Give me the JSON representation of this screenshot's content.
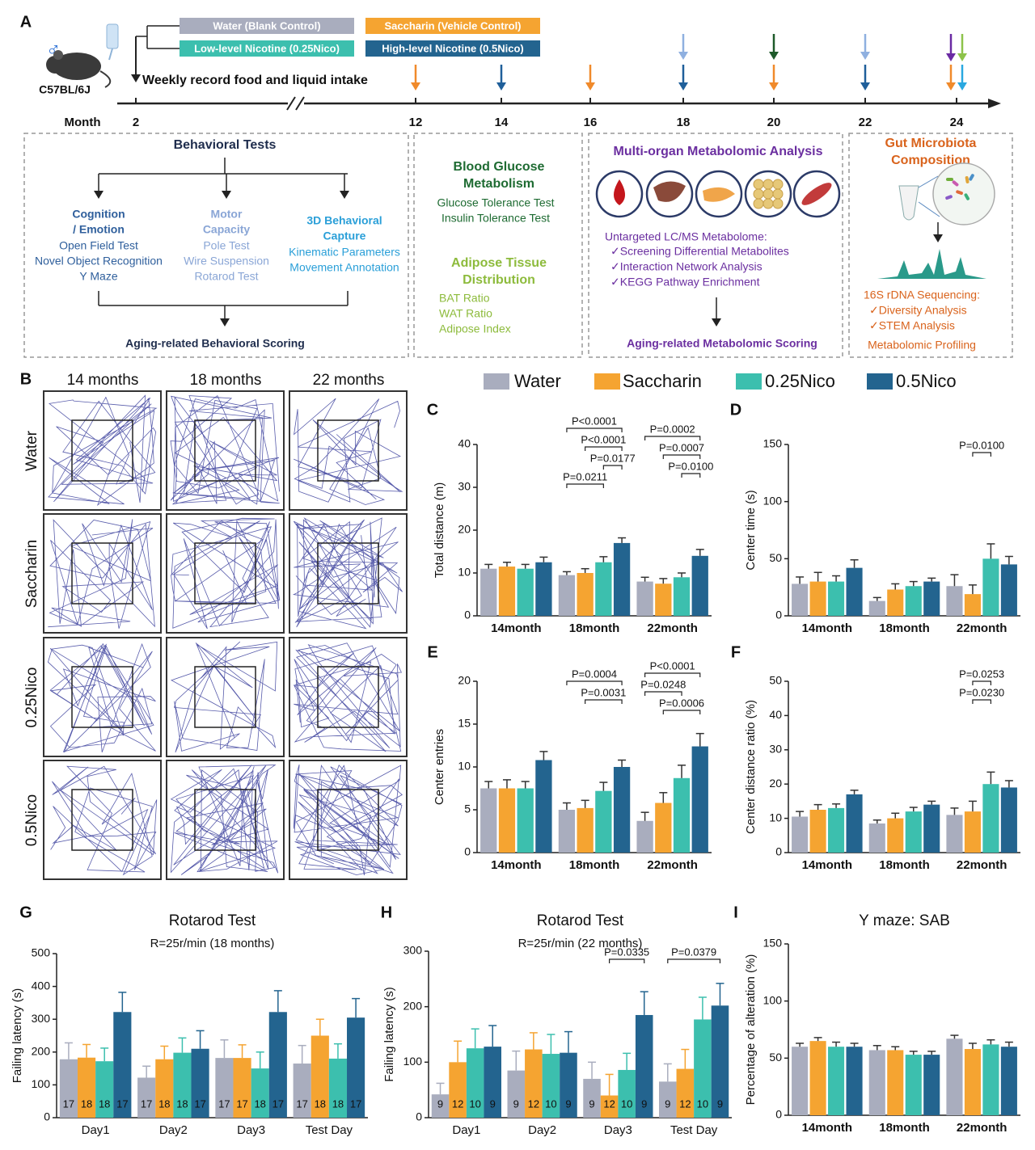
{
  "panel_a": {
    "label": "A",
    "sex_symbol": "♂",
    "strain": "C57BL/6J",
    "groups": [
      {
        "text": "Water (Blank Control)",
        "color": "#a9adbe"
      },
      {
        "text": "Low-level Nicotine (0.25Nico)",
        "color": "#3cbfae"
      },
      {
        "text": "Saccharin (Vehicle Control)",
        "color": "#f5a431"
      },
      {
        "text": "High-level Nicotine (0.5Nico)",
        "color": "#23648f"
      }
    ],
    "intake": "Weekly record food and liquid intake",
    "axis_label": "Month",
    "months": [
      2,
      12,
      14,
      16,
      18,
      20,
      22,
      24
    ],
    "behavioral": {
      "title": "Behavioral Tests",
      "branches": [
        {
          "title": [
            "Cognition",
            "/ Emotion"
          ],
          "color": "#2f5f9c",
          "items": [
            "Open Field Test",
            "Novel Object Recognition",
            "Y Maze"
          ]
        },
        {
          "title": [
            "Motor",
            "Capacity"
          ],
          "color": "#8aa6d6",
          "items": [
            "Pole Test",
            "Wire Suspension",
            "Rotarod Test"
          ]
        },
        {
          "title": [
            "3D Behavioral",
            "Capture"
          ],
          "color": "#2a9fd8",
          "items": [
            "Kinematic Parameters",
            "Movement Annotation"
          ]
        }
      ],
      "footer": "Aging-related Behavioral Scoring"
    },
    "physiology": [
      {
        "title": [
          "Blood Glucose",
          "Metabolism"
        ],
        "color": "#1e6b32",
        "items": [
          "Glucose Tolerance Test",
          "Insulin Tolerance Test"
        ]
      },
      {
        "title": [
          "Adipose Tissue",
          "Distribution"
        ],
        "color": "#8dbb3c",
        "items": [
          "BAT Ratio",
          "WAT Ratio",
          "Adipose Index"
        ]
      }
    ],
    "metabolomic": {
      "title": "Multi-organ Metabolomic Analysis",
      "method": "Untargeted LC/MS Metabolome:",
      "items": [
        "✓Screening Differential Metabolites",
        "✓Interaction Network Analysis",
        "✓KEGG Pathway Enrichment"
      ],
      "footer": "Aging-related Metabolomic Scoring"
    },
    "microbiota": {
      "title": [
        "Gut Microbiota",
        "Composition"
      ],
      "method": "16S rDNA Sequencing:",
      "items": [
        "✓Diversity Analysis",
        "✓STEM Analysis"
      ],
      "footer": "Metabolomic Profiling"
    }
  },
  "panel_b": {
    "label": "B",
    "columns": [
      "14 months",
      "18 months",
      "22 months"
    ],
    "rows": [
      "Water",
      "Saccharin",
      "0.25Nico",
      "0.5Nico"
    ]
  },
  "legend": [
    {
      "name": "Water",
      "color": "#a9adbe"
    },
    {
      "name": "Saccharin",
      "color": "#f5a431"
    },
    {
      "name": "0.25Nico",
      "color": "#3cbfae"
    },
    {
      "name": "0.5Nico",
      "color": "#23648f"
    }
  ],
  "chart_data": [
    {
      "type": "bar",
      "label": "C",
      "ylabel": "Total distance (m)",
      "categories": [
        "14month",
        "18month",
        "22month"
      ],
      "ylim": [
        0,
        40
      ],
      "yticks": [
        0,
        10,
        20,
        30,
        40
      ],
      "series": [
        {
          "values": [
            11,
            9.5,
            8
          ],
          "errors": [
            1,
            0.8,
            1
          ]
        },
        {
          "values": [
            11.5,
            10,
            7.5
          ],
          "errors": [
            1,
            1,
            1.2
          ]
        },
        {
          "values": [
            11,
            12.5,
            9
          ],
          "errors": [
            1,
            1.3,
            1
          ]
        },
        {
          "values": [
            12.5,
            17,
            14
          ],
          "errors": [
            1.2,
            1.2,
            1.5
          ]
        }
      ],
      "annotations": [
        {
          "label": "P<0.0001",
          "category": 1,
          "from": 0,
          "to": 3
        },
        {
          "label": "P<0.0001",
          "category": 1,
          "from": 1,
          "to": 3
        },
        {
          "label": "P=0.0177",
          "category": 1,
          "from": 2,
          "to": 3
        },
        {
          "label": "P=0.0211",
          "category": 1,
          "from": 0,
          "to": 2
        },
        {
          "label": "P=0.0002",
          "category": 2,
          "from": 0,
          "to": 3
        },
        {
          "label": "P=0.0007",
          "category": 2,
          "from": 1,
          "to": 3
        },
        {
          "label": "P=0.0100",
          "category": 2,
          "from": 2,
          "to": 3
        }
      ]
    },
    {
      "type": "bar",
      "label": "D",
      "ylabel": "Center time (s)",
      "categories": [
        "14month",
        "18month",
        "22month"
      ],
      "ylim": [
        0,
        150
      ],
      "yticks": [
        0,
        50,
        100,
        150
      ],
      "series": [
        {
          "values": [
            28,
            13,
            26
          ],
          "errors": [
            6,
            3,
            10
          ]
        },
        {
          "values": [
            30,
            23,
            19
          ],
          "errors": [
            8,
            5,
            8
          ]
        },
        {
          "values": [
            30,
            26,
            50
          ],
          "errors": [
            5,
            4,
            13
          ]
        },
        {
          "values": [
            42,
            30,
            45
          ],
          "errors": [
            7,
            3,
            7
          ]
        }
      ],
      "annotations": [
        {
          "label": "P=0.0100",
          "category": 2,
          "from": 1,
          "to": 2
        }
      ]
    },
    {
      "type": "bar",
      "label": "E",
      "ylabel": "Center entries",
      "categories": [
        "14month",
        "18month",
        "22month"
      ],
      "ylim": [
        0,
        20
      ],
      "yticks": [
        0,
        5,
        10,
        15,
        20
      ],
      "series": [
        {
          "values": [
            7.5,
            5,
            3.7
          ],
          "errors": [
            0.8,
            0.8,
            1
          ]
        },
        {
          "values": [
            7.5,
            5.2,
            5.8
          ],
          "errors": [
            1,
            0.9,
            1.2
          ]
        },
        {
          "values": [
            7.5,
            7.2,
            8.7
          ],
          "errors": [
            0.8,
            1,
            1.5
          ]
        },
        {
          "values": [
            10.8,
            10,
            12.4
          ],
          "errors": [
            1,
            0.8,
            1.5
          ]
        }
      ],
      "annotations": [
        {
          "label": "P=0.0004",
          "category": 1,
          "from": 0,
          "to": 3
        },
        {
          "label": "P=0.0031",
          "category": 1,
          "from": 1,
          "to": 3
        },
        {
          "label": "P<0.0001",
          "category": 2,
          "from": 0,
          "to": 3
        },
        {
          "label": "P=0.0248",
          "category": 2,
          "from": 0,
          "to": 2
        },
        {
          "label": "P=0.0006",
          "category": 2,
          "from": 1,
          "to": 3
        }
      ]
    },
    {
      "type": "bar",
      "label": "F",
      "ylabel": "Center distance ratio (%)",
      "categories": [
        "14month",
        "18month",
        "22month"
      ],
      "ylim": [
        0,
        50
      ],
      "yticks": [
        0,
        10,
        20,
        30,
        40,
        50
      ],
      "series": [
        {
          "values": [
            10.5,
            8.5,
            11
          ],
          "errors": [
            1.5,
            1,
            2
          ]
        },
        {
          "values": [
            12.5,
            10,
            12
          ],
          "errors": [
            1.5,
            1.5,
            3
          ]
        },
        {
          "values": [
            13,
            12,
            20
          ],
          "errors": [
            1.2,
            1.2,
            3.5
          ]
        },
        {
          "values": [
            17,
            14,
            19
          ],
          "errors": [
            1.2,
            1,
            2
          ]
        }
      ],
      "annotations": [
        {
          "label": "P=0.0253",
          "category": 2,
          "from": 1,
          "to": 2
        },
        {
          "label": "P=0.0230",
          "category": 2,
          "from": 1,
          "to": 2
        }
      ]
    },
    {
      "type": "bar",
      "label": "G",
      "title": "Rotarod Test",
      "subtitle": "R=25r/min (18 months)",
      "ylabel": "Failing latency (s)",
      "categories": [
        "Day1",
        "Day2",
        "Day3",
        "Test Day"
      ],
      "ylim": [
        0,
        500
      ],
      "yticks": [
        0,
        100,
        200,
        300,
        400,
        500
      ],
      "series": [
        {
          "values": [
            178,
            122,
            182,
            165
          ],
          "errors": [
            50,
            35,
            55,
            55
          ],
          "n": [
            17,
            17,
            17,
            17
          ]
        },
        {
          "values": [
            183,
            178,
            182,
            250
          ],
          "errors": [
            40,
            40,
            40,
            50
          ],
          "n": [
            18,
            18,
            17,
            18
          ]
        },
        {
          "values": [
            172,
            198,
            150,
            180
          ],
          "errors": [
            40,
            45,
            50,
            45
          ],
          "n": [
            18,
            18,
            18,
            18
          ]
        },
        {
          "values": [
            322,
            210,
            322,
            305
          ],
          "errors": [
            60,
            55,
            65,
            58
          ],
          "n": [
            17,
            17,
            17,
            17
          ]
        }
      ],
      "annotations": []
    },
    {
      "type": "bar",
      "label": "H",
      "title": "Rotarod Test",
      "subtitle": "R=25r/min (22 months)",
      "ylabel": "Failing latency (s)",
      "categories": [
        "Day1",
        "Day2",
        "Day3",
        "Test Day"
      ],
      "ylim": [
        0,
        300
      ],
      "yticks": [
        0,
        100,
        200,
        300
      ],
      "series": [
        {
          "values": [
            42,
            85,
            70,
            65
          ],
          "errors": [
            20,
            35,
            30,
            32
          ],
          "n": [
            9,
            9,
            9,
            9
          ]
        },
        {
          "values": [
            100,
            123,
            40,
            88
          ],
          "errors": [
            38,
            30,
            38,
            35
          ],
          "n": [
            12,
            12,
            12,
            12
          ]
        },
        {
          "values": [
            125,
            115,
            86,
            177
          ],
          "errors": [
            35,
            35,
            30,
            40
          ],
          "n": [
            10,
            10,
            10,
            10
          ]
        },
        {
          "values": [
            128,
            117,
            185,
            202
          ],
          "errors": [
            38,
            38,
            42,
            40
          ],
          "n": [
            9,
            9,
            9,
            9
          ]
        }
      ],
      "annotations": [
        {
          "label": "P=0.0335",
          "category": 2,
          "from": 1,
          "to": 3
        },
        {
          "label": "P=0.0379",
          "category": 3,
          "from": 0,
          "to": 3
        }
      ]
    },
    {
      "type": "bar",
      "label": "I",
      "title": "Y maze: SAB",
      "ylabel": "Percentage of alteration (%)",
      "categories": [
        "14month",
        "18month",
        "22month"
      ],
      "ylim": [
        0,
        150
      ],
      "yticks": [
        0,
        50,
        100,
        150
      ],
      "series": [
        {
          "values": [
            60,
            57,
            67
          ],
          "errors": [
            3,
            4,
            3
          ]
        },
        {
          "values": [
            65,
            57,
            58
          ],
          "errors": [
            3,
            3,
            5
          ]
        },
        {
          "values": [
            60,
            53,
            62
          ],
          "errors": [
            4,
            3,
            4
          ]
        },
        {
          "values": [
            60,
            53,
            60
          ],
          "errors": [
            3,
            3,
            4
          ]
        }
      ],
      "annotations": []
    }
  ]
}
